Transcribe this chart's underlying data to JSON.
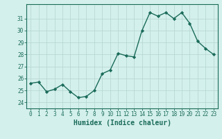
{
  "x": [
    0,
    1,
    2,
    3,
    4,
    5,
    6,
    7,
    8,
    9,
    10,
    11,
    12,
    13,
    14,
    15,
    16,
    17,
    18,
    19,
    20,
    21,
    22,
    23
  ],
  "y": [
    25.6,
    25.7,
    24.9,
    25.1,
    25.5,
    24.9,
    24.4,
    24.5,
    25.0,
    26.4,
    26.7,
    28.1,
    27.9,
    27.8,
    30.0,
    31.5,
    31.2,
    31.5,
    31.0,
    31.5,
    30.6,
    29.1,
    28.5,
    28.0
  ],
  "line_color": "#1a6b5a",
  "marker": "D",
  "marker_size": 2.2,
  "bg_color": "#d4f0ec",
  "grid_color": "#b8d8d4",
  "xlabel": "Humidex (Indice chaleur)",
  "xlim": [
    -0.5,
    23.5
  ],
  "ylim": [
    23.5,
    32.2
  ],
  "yticks": [
    24,
    25,
    26,
    27,
    28,
    29,
    30,
    31
  ],
  "xticks": [
    0,
    1,
    2,
    3,
    4,
    5,
    6,
    7,
    8,
    9,
    10,
    11,
    12,
    13,
    14,
    15,
    16,
    17,
    18,
    19,
    20,
    21,
    22,
    23
  ],
  "tick_label_fontsize": 5.5,
  "xlabel_fontsize": 7.0,
  "line_width": 1.0
}
